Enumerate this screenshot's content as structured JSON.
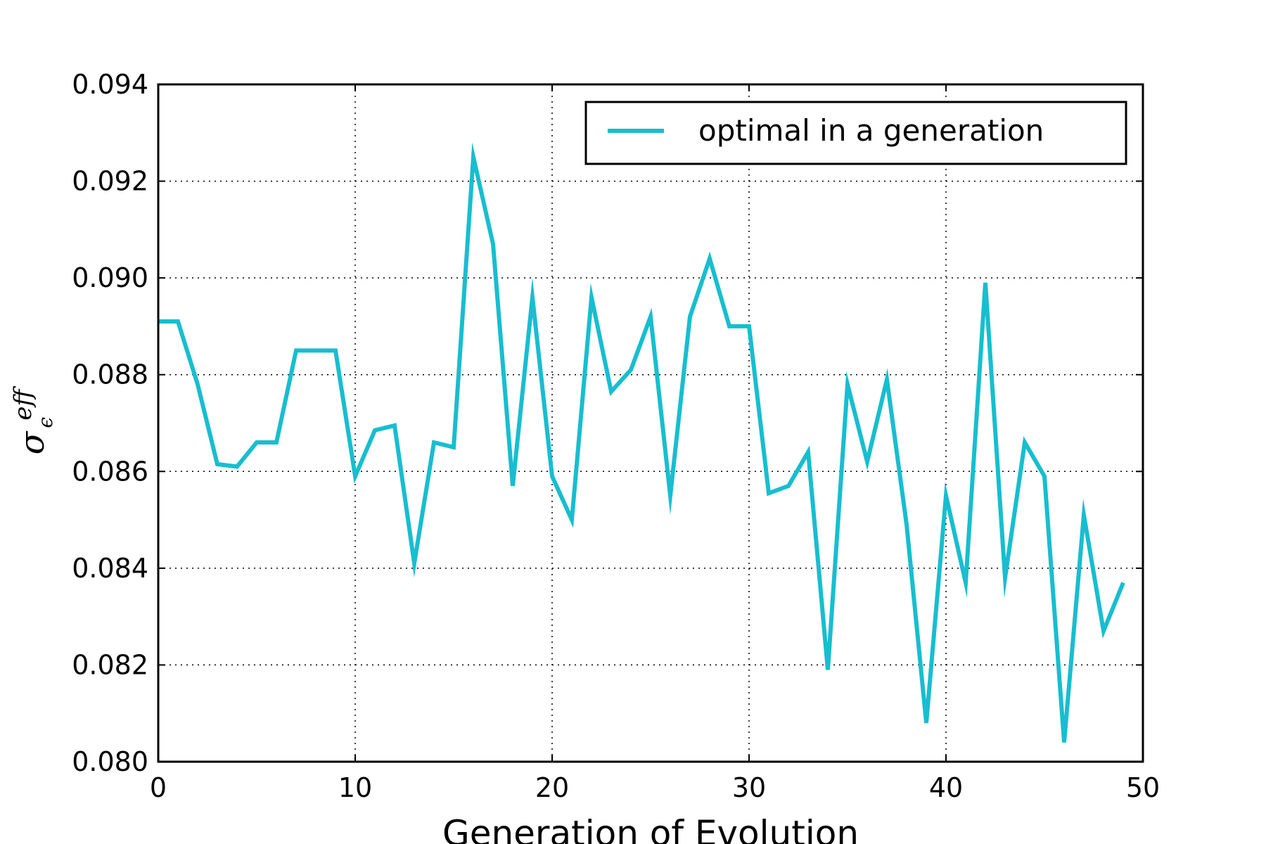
{
  "chart_data": {
    "type": "line",
    "title": "",
    "xlabel": "Generation of Evolution",
    "ylabel": {
      "base": "σ",
      "sub": "ϵ",
      "sup": "eff"
    },
    "xlim": [
      0,
      50
    ],
    "ylim": [
      0.08,
      0.094
    ],
    "xticks": [
      0,
      10,
      20,
      30,
      40,
      50
    ],
    "yticks": [
      0.08,
      0.082,
      0.084,
      0.086,
      0.088,
      0.09,
      0.092,
      0.094
    ],
    "xtick_labels": [
      "0",
      "10",
      "20",
      "30",
      "40",
      "50"
    ],
    "ytick_labels": [
      "0.080",
      "0.082",
      "0.084",
      "0.086",
      "0.088",
      "0.090",
      "0.092",
      "0.094"
    ],
    "grid": true,
    "legend": {
      "position": "top-right"
    },
    "series": [
      {
        "name": "optimal in a generation",
        "color": "#17becf",
        "x": [
          0,
          1,
          2,
          3,
          4,
          5,
          6,
          7,
          8,
          9,
          10,
          11,
          12,
          13,
          14,
          15,
          16,
          17,
          18,
          19,
          20,
          21,
          22,
          23,
          24,
          25,
          26,
          27,
          28,
          29,
          30,
          31,
          32,
          33,
          34,
          35,
          36,
          37,
          38,
          39,
          40,
          41,
          42,
          43,
          44,
          45,
          46,
          47,
          48,
          49
        ],
        "values": [
          0.0891,
          0.0891,
          0.0878,
          0.08615,
          0.0861,
          0.0866,
          0.0866,
          0.0885,
          0.0885,
          0.0885,
          0.0859,
          0.08685,
          0.08695,
          0.0841,
          0.0866,
          0.0865,
          0.0925,
          0.0907,
          0.0857,
          0.0896,
          0.0859,
          0.085,
          0.0896,
          0.08765,
          0.0881,
          0.0892,
          0.0855,
          0.0892,
          0.0904,
          0.089,
          0.089,
          0.08555,
          0.0857,
          0.0864,
          0.0819,
          0.0878,
          0.0862,
          0.0879,
          0.0849,
          0.0808,
          0.0855,
          0.0837,
          0.0899,
          0.0838,
          0.0866,
          0.0859,
          0.0804,
          0.0851,
          0.0827,
          0.0837
        ]
      }
    ]
  }
}
